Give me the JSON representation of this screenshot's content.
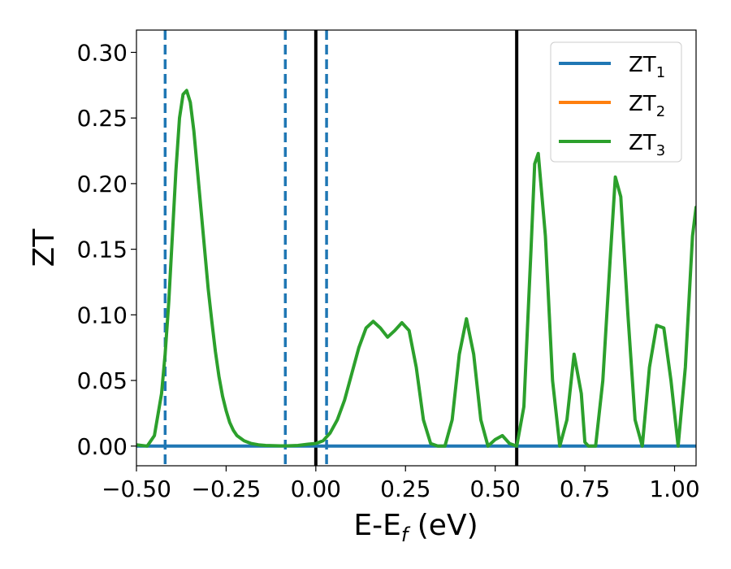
{
  "chart_data": {
    "type": "line",
    "xlabel": "E-E",
    "xlabel_subscript": "f",
    "xlabel_unit": " (eV)",
    "ylabel": "ZT",
    "xlim": [
      -0.5,
      1.06
    ],
    "ylim": [
      -0.015,
      0.317
    ],
    "xticks": [
      -0.5,
      -0.25,
      0.0,
      0.25,
      0.5,
      0.75,
      1.0
    ],
    "xtick_labels": [
      "−0.50",
      "−0.25",
      "0.00",
      "0.25",
      "0.50",
      "0.75",
      "1.00"
    ],
    "yticks": [
      0.0,
      0.05,
      0.1,
      0.15,
      0.2,
      0.25,
      0.3
    ],
    "ytick_labels": [
      "0.00",
      "0.05",
      "0.10",
      "0.15",
      "0.20",
      "0.25",
      "0.30"
    ],
    "grid": false,
    "legend_position": "top-right",
    "series": [
      {
        "name": "ZT",
        "subscript": "1",
        "color": "#1f77b4",
        "x": [
          -0.5,
          1.06
        ],
        "y": [
          0.0,
          0.0
        ]
      },
      {
        "name": "ZT",
        "subscript": "2",
        "color": "#ff7f0e",
        "x": [],
        "y": []
      },
      {
        "name": "ZT",
        "subscript": "3",
        "color": "#2ca02c",
        "x": [
          -0.5,
          -0.47,
          -0.45,
          -0.43,
          -0.42,
          -0.41,
          -0.4,
          -0.39,
          -0.38,
          -0.37,
          -0.36,
          -0.35,
          -0.34,
          -0.33,
          -0.32,
          -0.31,
          -0.3,
          -0.29,
          -0.28,
          -0.27,
          -0.26,
          -0.25,
          -0.24,
          -0.23,
          -0.22,
          -0.2,
          -0.18,
          -0.16,
          -0.14,
          -0.12,
          -0.1,
          -0.08,
          -0.05,
          -0.02,
          0.0,
          0.02,
          0.04,
          0.06,
          0.08,
          0.1,
          0.12,
          0.14,
          0.16,
          0.18,
          0.2,
          0.22,
          0.24,
          0.26,
          0.28,
          0.3,
          0.32,
          0.34,
          0.35,
          0.36,
          0.38,
          0.4,
          0.42,
          0.44,
          0.46,
          0.48,
          0.5,
          0.52,
          0.54,
          0.56,
          0.58,
          0.6,
          0.61,
          0.62,
          0.64,
          0.66,
          0.68,
          0.7,
          0.72,
          0.74,
          0.75,
          0.76,
          0.78,
          0.8,
          0.82,
          0.835,
          0.85,
          0.87,
          0.89,
          0.91,
          0.93,
          0.95,
          0.97,
          0.99,
          1.01,
          1.03,
          1.05,
          1.06
        ],
        "y": [
          0.001,
          0.0,
          0.008,
          0.04,
          0.07,
          0.11,
          0.16,
          0.21,
          0.25,
          0.268,
          0.271,
          0.262,
          0.24,
          0.21,
          0.18,
          0.15,
          0.12,
          0.095,
          0.072,
          0.053,
          0.038,
          0.027,
          0.018,
          0.012,
          0.008,
          0.004,
          0.002,
          0.001,
          0.0005,
          0.0003,
          0.0002,
          0.0002,
          0.0005,
          0.0015,
          0.002,
          0.004,
          0.01,
          0.02,
          0.035,
          0.055,
          0.075,
          0.09,
          0.095,
          0.09,
          0.083,
          0.088,
          0.094,
          0.088,
          0.06,
          0.02,
          0.002,
          0.0,
          0.0,
          0.0,
          0.02,
          0.07,
          0.097,
          0.07,
          0.02,
          0.0,
          0.005,
          0.008,
          0.002,
          0.0,
          0.03,
          0.15,
          0.215,
          0.223,
          0.16,
          0.05,
          0.0,
          0.02,
          0.07,
          0.04,
          0.003,
          0.0,
          0.0,
          0.05,
          0.14,
          0.205,
          0.19,
          0.1,
          0.02,
          0.0,
          0.06,
          0.092,
          0.09,
          0.05,
          0.0,
          0.06,
          0.16,
          0.182
        ]
      }
    ],
    "vlines": [
      {
        "x": -0.42,
        "style": "dashed",
        "color": "#1f77b4"
      },
      {
        "x": -0.085,
        "style": "dashed",
        "color": "#1f77b4"
      },
      {
        "x": 0.0,
        "style": "solid",
        "color": "#000000"
      },
      {
        "x": 0.03,
        "style": "dashed",
        "color": "#1f77b4"
      },
      {
        "x": 0.56,
        "style": "solid",
        "color": "#000000"
      }
    ]
  }
}
